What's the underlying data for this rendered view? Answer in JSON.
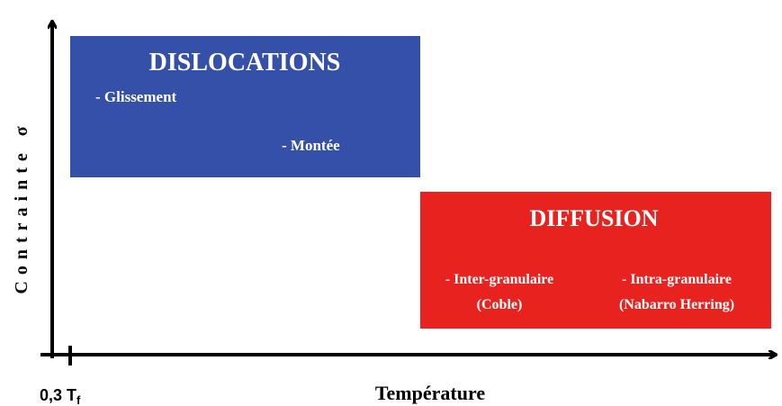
{
  "axes": {
    "y_label": "Contrainte σ",
    "x_label": "Température",
    "origin_label": {
      "main": "0,3 T",
      "sub": "f"
    }
  },
  "regions": [
    {
      "title": "DISLOCATIONS",
      "items": [
        "- Glissement",
        "- Montée"
      ]
    },
    {
      "title": "DIFFUSION",
      "items": [
        {
          "text": "- Inter-granulaire",
          "note": "(Coble)"
        },
        {
          "text": "- Intra-granulaire",
          "note": "(Nabarro Herring)"
        }
      ]
    }
  ]
}
